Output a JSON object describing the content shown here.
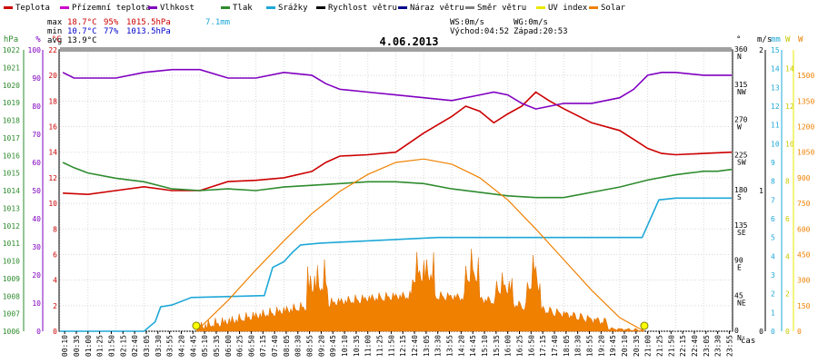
{
  "chart_data": {
    "type": "line",
    "title": "4.06.2013",
    "legend": [
      {
        "name": "Teplota",
        "color": "#cc0000"
      },
      {
        "name": "Přízemní teplota",
        "color": "#cc00cc"
      },
      {
        "name": "Vlhkost",
        "color": "#8000c0"
      },
      {
        "name": "Tlak",
        "color": "#2e8b2e"
      },
      {
        "name": "Srážky",
        "color": "#1ea8d8"
      },
      {
        "name": "Rychlost větru",
        "color": "#000000"
      },
      {
        "name": "Náraz větru",
        "color": "#00008b"
      },
      {
        "name": "Směr větru",
        "color": "#808080"
      },
      {
        "name": "UV index",
        "color": "#e8e800"
      },
      {
        "name": "Solar",
        "color": "#f08000"
      }
    ],
    "stats": {
      "max_label": "max",
      "max_temp": "18.7°C",
      "max_hum": "95%",
      "max_press": "1015.5hPa",
      "rain": "7.1mm",
      "min_label": "min",
      "min_temp": "10.7°C",
      "min_hum": "77%",
      "min_press": "1013.5hPa",
      "avg_label": "avg",
      "avg_temp": "13.9°C"
    },
    "wind_info": {
      "ws": "WS:0m/s",
      "wg": "WG:0m/s",
      "sunrise": "Východ:04:52",
      "sunset": "Západ:20:53"
    },
    "axes": {
      "hpa": {
        "label": "hPa",
        "min": 1006,
        "max": 1022,
        "ticks": [
          1006,
          1007,
          1008,
          1009,
          1010,
          1011,
          1012,
          1013,
          1014,
          1015,
          1016,
          1017,
          1018,
          1019,
          1020,
          1021,
          1022
        ]
      },
      "pct": {
        "label": "%",
        "min": 0,
        "max": 100,
        "ticks": [
          0,
          10,
          20,
          30,
          40,
          50,
          60,
          70,
          80,
          90,
          100
        ]
      },
      "temp": {
        "label": "°C",
        "min": 0,
        "max": 22,
        "ticks": [
          0,
          2,
          4,
          6,
          8,
          10,
          12,
          14,
          16,
          18,
          20,
          22
        ]
      },
      "dir": {
        "label": "°",
        "ticks": [
          {
            "v": 0,
            "deg": "0",
            "dir": "N"
          },
          {
            "v": 45,
            "deg": "45",
            "dir": "NE"
          },
          {
            "v": 90,
            "deg": "90",
            "dir": "E"
          },
          {
            "v": 135,
            "deg": "135",
            "dir": "SE"
          },
          {
            "v": 180,
            "deg": "180",
            "dir": "S"
          },
          {
            "v": 225,
            "deg": "225",
            "dir": "SW"
          },
          {
            "v": 270,
            "deg": "270",
            "dir": "W"
          },
          {
            "v": 315,
            "deg": "315",
            "dir": "NW"
          },
          {
            "v": 360,
            "deg": "360",
            "dir": "N"
          }
        ]
      },
      "ms": {
        "label": "m/s",
        "ticks": [
          {
            "v": 0,
            "t": "0"
          },
          {
            "v": 1,
            "t": "1"
          },
          {
            "v": 2,
            "t": "2"
          }
        ]
      },
      "mm": {
        "label": "mm",
        "min": 0,
        "max": 15,
        "ticks": [
          0,
          1,
          2,
          3,
          4,
          5,
          6,
          7,
          8,
          9,
          10,
          11,
          12,
          13,
          14,
          15
        ]
      },
      "uv": {
        "label": "W",
        "min": 0,
        "max": 15,
        "ticks": [
          0,
          2,
          4,
          6,
          8,
          10,
          12,
          14
        ]
      },
      "wm2": {
        "label": "W",
        "min": 0,
        "max": 1650,
        "ticks": [
          0,
          150,
          300,
          450,
          600,
          750,
          900,
          1050,
          1200,
          1350,
          1500
        ]
      },
      "x_label": "čas",
      "x_ticks": [
        "00:10",
        "00:35",
        "01:00",
        "01:25",
        "01:50",
        "02:15",
        "02:40",
        "03:05",
        "03:30",
        "03:55",
        "04:20",
        "04:45",
        "05:10",
        "05:35",
        "06:00",
        "06:25",
        "06:50",
        "07:15",
        "07:40",
        "08:05",
        "08:30",
        "08:55",
        "09:20",
        "09:45",
        "10:10",
        "10:35",
        "11:00",
        "11:25",
        "11:50",
        "12:15",
        "12:40",
        "13:05",
        "13:30",
        "13:55",
        "14:20",
        "14:45",
        "15:10",
        "15:35",
        "16:00",
        "16:25",
        "16:50",
        "17:15",
        "17:40",
        "18:05",
        "18:30",
        "18:55",
        "19:20",
        "19:45",
        "20:10",
        "20:35",
        "21:00",
        "21:25",
        "21:50",
        "22:15",
        "22:40",
        "23:05",
        "23:30",
        "23:55"
      ]
    },
    "hours": [
      0,
      1,
      2,
      3,
      4,
      5,
      6,
      7,
      8,
      9,
      10,
      11,
      12,
      13,
      14,
      15,
      16,
      17,
      18,
      19,
      20,
      21,
      22,
      23,
      24
    ],
    "series": [
      {
        "name": "Teplota",
        "unit": "°C",
        "color": "#cc0000",
        "x": [
          0.1,
          1,
          2,
          3,
          4,
          5,
          6,
          7,
          8,
          9,
          9.5,
          10,
          11,
          12,
          13,
          14,
          14.5,
          15,
          15.5,
          16,
          16.5,
          17,
          17.5,
          18,
          19,
          20,
          20.5,
          21,
          21.5,
          22,
          23,
          24
        ],
        "values": [
          10.8,
          10.7,
          11.0,
          11.3,
          11.0,
          11.0,
          11.7,
          11.8,
          12.0,
          12.5,
          13.2,
          13.7,
          13.8,
          14.0,
          15.5,
          16.8,
          17.6,
          17.2,
          16.3,
          17.0,
          17.6,
          18.7,
          18.0,
          17.4,
          16.3,
          15.7,
          15.0,
          14.3,
          13.9,
          13.8,
          13.9,
          14.0
        ]
      },
      {
        "name": "Vlhkost",
        "unit": "%",
        "color": "#8000c0",
        "x": [
          0.1,
          0.5,
          1,
          2,
          3,
          4,
          5,
          6,
          7,
          8,
          9,
          9.5,
          10,
          11,
          12,
          13,
          14,
          15,
          15.5,
          16,
          16.5,
          17,
          17.5,
          18,
          19,
          20,
          20.5,
          21,
          21.5,
          22,
          23,
          24
        ],
        "values": [
          92,
          90,
          90,
          90,
          92,
          93,
          93,
          90,
          90,
          92,
          91,
          88,
          86,
          85,
          84,
          83,
          82,
          84,
          85,
          84,
          81,
          79,
          80,
          81,
          81,
          83,
          86,
          91,
          92,
          92,
          91,
          91
        ]
      },
      {
        "name": "Tlak",
        "unit": "hPa",
        "color": "#2e8b2e",
        "x": [
          0.1,
          0.5,
          1,
          2,
          3,
          4,
          5,
          6,
          7,
          8,
          9,
          10,
          11,
          12,
          13,
          14,
          15,
          16,
          17,
          18,
          19,
          20,
          21,
          22,
          23,
          23.5,
          24
        ],
        "values": [
          1015.6,
          1015.3,
          1015.0,
          1014.7,
          1014.5,
          1014.1,
          1014.0,
          1014.1,
          1014.0,
          1014.2,
          1014.3,
          1014.4,
          1014.5,
          1014.5,
          1014.4,
          1014.1,
          1013.9,
          1013.7,
          1013.6,
          1013.6,
          1013.9,
          1014.2,
          1014.6,
          1014.9,
          1015.1,
          1015.1,
          1015.2
        ]
      },
      {
        "name": "Srážky",
        "unit": "mm",
        "color": "#1ea8d8",
        "x": [
          0,
          3.0,
          3.4,
          3.6,
          4.0,
          4.7,
          7.3,
          7.6,
          8.0,
          8.3,
          8.6,
          9.3,
          13.5,
          20.8,
          21.4,
          22.0,
          24
        ],
        "values": [
          0,
          0,
          0.5,
          1.3,
          1.4,
          1.8,
          1.9,
          3.4,
          3.7,
          4.2,
          4.6,
          4.7,
          5.0,
          5.0,
          7.0,
          7.1,
          7.1
        ]
      },
      {
        "name": "Solar",
        "unit": "W/m2",
        "color": "#f08000",
        "x": [
          4.87,
          6,
          7,
          8,
          9,
          10,
          11,
          12,
          13,
          14,
          15,
          16,
          17,
          18,
          19,
          20,
          20.88
        ],
        "values": [
          0,
          180,
          360,
          530,
          690,
          820,
          920,
          990,
          1010,
          980,
          900,
          770,
          600,
          420,
          240,
          80,
          0
        ]
      }
    ]
  }
}
